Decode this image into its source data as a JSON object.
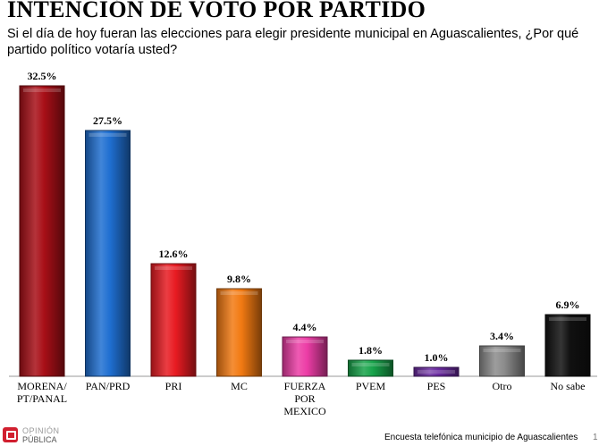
{
  "header": {
    "title": "INTENCIÓN DE VOTO POR PARTIDO",
    "subtitle": "Si el día de hoy fueran las elecciones para elegir presidente municipal en Aguascalientes, ¿Por qué partido político votaría usted?"
  },
  "chart_data": {
    "type": "bar",
    "title": "INTENCIÓN DE VOTO POR PARTIDO",
    "categories": [
      "MORENA/ PT/PANAL",
      "PAN/PRD",
      "PRI",
      "MC",
      "FUERZA POR MEXICO",
      "PVEM",
      "PES",
      "Otro",
      "No sabe"
    ],
    "category_lines": [
      [
        "MORENA/",
        "PT/PANAL"
      ],
      [
        "PAN/PRD"
      ],
      [
        "PRI"
      ],
      [
        "MC"
      ],
      [
        "FUERZA",
        "POR",
        "MEXICO"
      ],
      [
        "PVEM"
      ],
      [
        "PES"
      ],
      [
        "Otro"
      ],
      [
        "No sabe"
      ]
    ],
    "values": [
      32.5,
      27.5,
      12.6,
      9.8,
      4.4,
      1.8,
      1.0,
      3.4,
      6.9
    ],
    "value_labels": [
      "32.5%",
      "27.5%",
      "12.6%",
      "9.8%",
      "4.4%",
      "1.8%",
      "1.0%",
      "3.4%",
      "6.9%"
    ],
    "colors": [
      "#a80f17",
      "#1f6fd1",
      "#e81b22",
      "#f27a12",
      "#ec3da6",
      "#17a34a",
      "#6a2aa0",
      "#8c8c8c",
      "#111111"
    ],
    "ylim": [
      0,
      32.5
    ],
    "xlabel": "",
    "ylabel": "",
    "grid": false
  },
  "logo": {
    "line1": "OPINIÓN",
    "line2": "PÚBLICA"
  },
  "footer": {
    "source": "Encuesta telefónica municipio de Aguascalientes",
    "page": "1"
  }
}
